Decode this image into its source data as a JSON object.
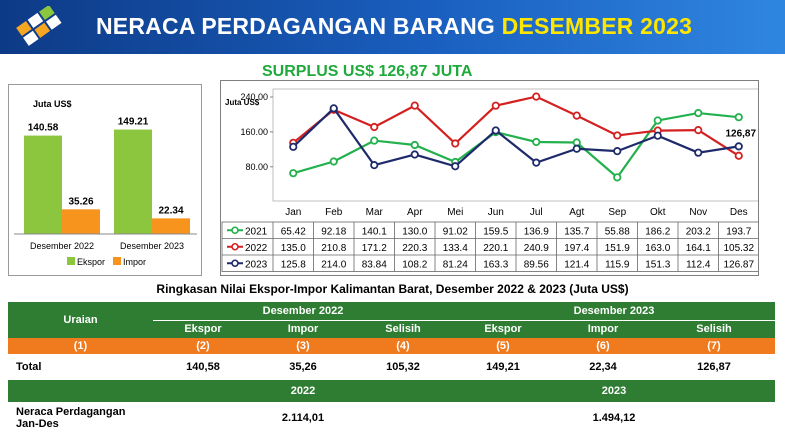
{
  "header": {
    "title_main": "NERACA PERDAGANGAN BARANG",
    "title_highlight": "DESEMBER 2023",
    "surplus": "SURPLUS US$ 126,87 JUTA"
  },
  "colors": {
    "header_bg": "#1a5fbf",
    "highlight": "#ffe600",
    "surplus_text": "#1faa3c",
    "ekspor_bar": "#8cc63e",
    "impor_bar": "#f7941d",
    "series_2021": "#22b14c",
    "series_2022": "#d42020",
    "series_2023": "#1f2a6b",
    "table_green": "#2e7d32",
    "table_orange": "#f07a1e"
  },
  "chart_data": [
    {
      "type": "bar",
      "ylabel": "Juta US$",
      "categories": [
        "Desember 2022",
        "Desember 2023"
      ],
      "series": [
        {
          "name": "Ekspor",
          "values": [
            140.58,
            149.21
          ],
          "labels": [
            "140.58",
            "149.21"
          ]
        },
        {
          "name": "Impor",
          "values": [
            35.26,
            22.34
          ],
          "labels": [
            "35.26",
            "22.34"
          ]
        }
      ],
      "ylim": [
        0,
        200
      ],
      "legend": "bottom"
    },
    {
      "type": "line",
      "ylabel": "Juta US$",
      "categories": [
        "Jan",
        "Feb",
        "Mar",
        "Apr",
        "Mei",
        "Jun",
        "Jul",
        "Agt",
        "Sep",
        "Okt",
        "Nov",
        "Des"
      ],
      "yticks": [
        "80.00",
        "160.00",
        "240.00"
      ],
      "ytick_values": [
        80,
        160,
        240
      ],
      "ylim": [
        20,
        240
      ],
      "series": [
        {
          "name": "2021",
          "values": [
            65.42,
            92.18,
            140.1,
            130.0,
            91.02,
            159.5,
            136.9,
            135.7,
            55.88,
            186.2,
            203.2,
            193.7
          ],
          "labels": [
            "65.42",
            "92.18",
            "140.1",
            "130.0",
            "91.02",
            "159.5",
            "136.9",
            "135.7",
            "55.88",
            "186.2",
            "203.2",
            "193.7"
          ]
        },
        {
          "name": "2022",
          "values": [
            135.0,
            210.8,
            171.2,
            220.3,
            133.4,
            220.1,
            240.9,
            197.4,
            151.9,
            163.0,
            164.1,
            105.32
          ],
          "labels": [
            "135.0",
            "210.8",
            "171.2",
            "220.3",
            "133.4",
            "220.1",
            "240.9",
            "197.4",
            "151.9",
            "163.0",
            "164.1",
            "105.32"
          ]
        },
        {
          "name": "2023",
          "values": [
            125.8,
            214.0,
            83.84,
            108.2,
            81.24,
            163.3,
            89.56,
            121.4,
            115.9,
            151.3,
            112.4,
            126.87
          ],
          "labels": [
            "125.8",
            "214.0",
            "83.84",
            "108.2",
            "81.24",
            "163.3",
            "89.56",
            "121.4",
            "115.9",
            "151.3",
            "112.4",
            "126.87"
          ]
        }
      ],
      "annotation": "126,87",
      "legend": "bottom"
    }
  ],
  "summary": {
    "title": "Ringkasan Nilai Ekspor-Impor Kalimantan Barat, Desember 2022 & 2023 (Juta US$)",
    "uraian": "Uraian",
    "period1": "Desember 2022",
    "period2": "Desember 2023",
    "col_ekspor": "Ekspor",
    "col_impor": "Impor",
    "col_selisih": "Selisih",
    "indices": [
      "(1)",
      "(2)",
      "(3)",
      "(4)",
      "(5)",
      "(6)",
      "(7)"
    ],
    "total_label": "Total",
    "total_values": [
      "140,58",
      "35,26",
      "105,32",
      "149,21",
      "22,34",
      "126,87"
    ],
    "year1": "2022",
    "year2": "2023",
    "neraca_label_1": "Neraca Perdagangan",
    "neraca_label_2": "Jan-Des",
    "neraca_2022": "2.114,01",
    "neraca_2023": "1.494,12"
  }
}
